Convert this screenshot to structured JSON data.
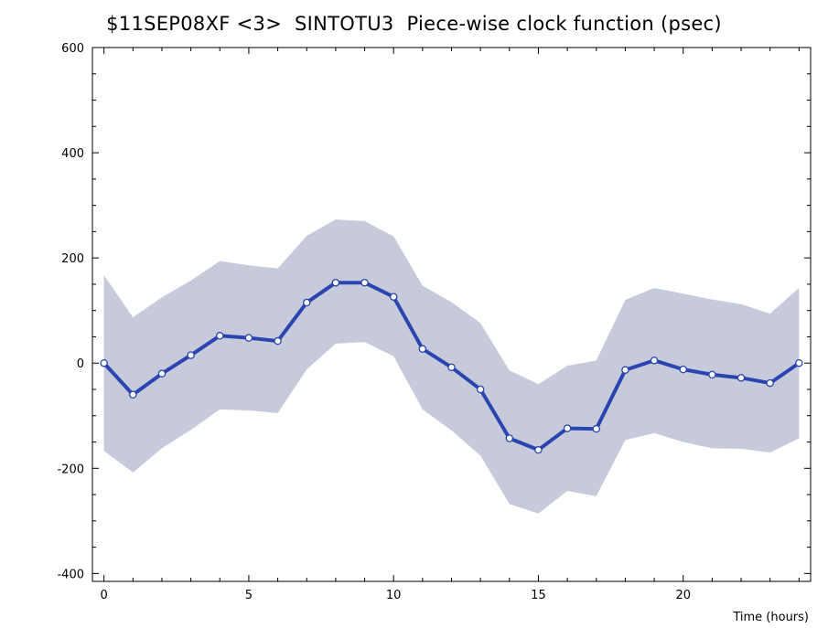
{
  "chart_data": {
    "type": "line",
    "title": "$11SEP08XF <3>  SINTOTU3  Piece-wise clock function (psec)",
    "xlabel": "Time (hours)",
    "ylabel": "",
    "xlim": [
      -0.4,
      24.4
    ],
    "ylim": [
      -415,
      600
    ],
    "x_ticks": [
      0,
      5,
      10,
      15,
      20
    ],
    "y_ticks": [
      -400,
      -200,
      0,
      200,
      400,
      600
    ],
    "x": [
      0,
      1,
      2,
      3,
      4,
      5,
      6,
      7,
      8,
      9,
      10,
      11,
      12,
      13,
      14,
      15,
      16,
      17,
      18,
      19,
      20,
      21,
      22,
      23,
      24
    ],
    "series": [
      {
        "values": [
          0,
          -60,
          -20,
          15,
          52,
          48,
          42,
          115,
          153,
          153,
          126,
          27,
          -8,
          -50,
          -143,
          -165,
          -124,
          -125,
          -13,
          5,
          -12,
          -22,
          -28,
          -38,
          0
        ]
      }
    ],
    "band_upper": [
      167,
      87,
      125,
      157,
      194,
      186,
      180,
      242,
      273,
      270,
      241,
      147,
      116,
      76,
      -14,
      -40,
      -5,
      5,
      120,
      143,
      132,
      121,
      112,
      94,
      143
    ],
    "band_lower": [
      -167,
      -208,
      -162,
      -127,
      -88,
      -90,
      -95,
      -12,
      37,
      40,
      13,
      -88,
      -128,
      -176,
      -268,
      -286,
      -243,
      -253,
      -146,
      -133,
      -150,
      -162,
      -163,
      -170,
      -143
    ],
    "colors": {
      "line": "#2a44b0",
      "band": "#c6cadb",
      "marker_fill": "#ffffff"
    },
    "grid": false
  }
}
